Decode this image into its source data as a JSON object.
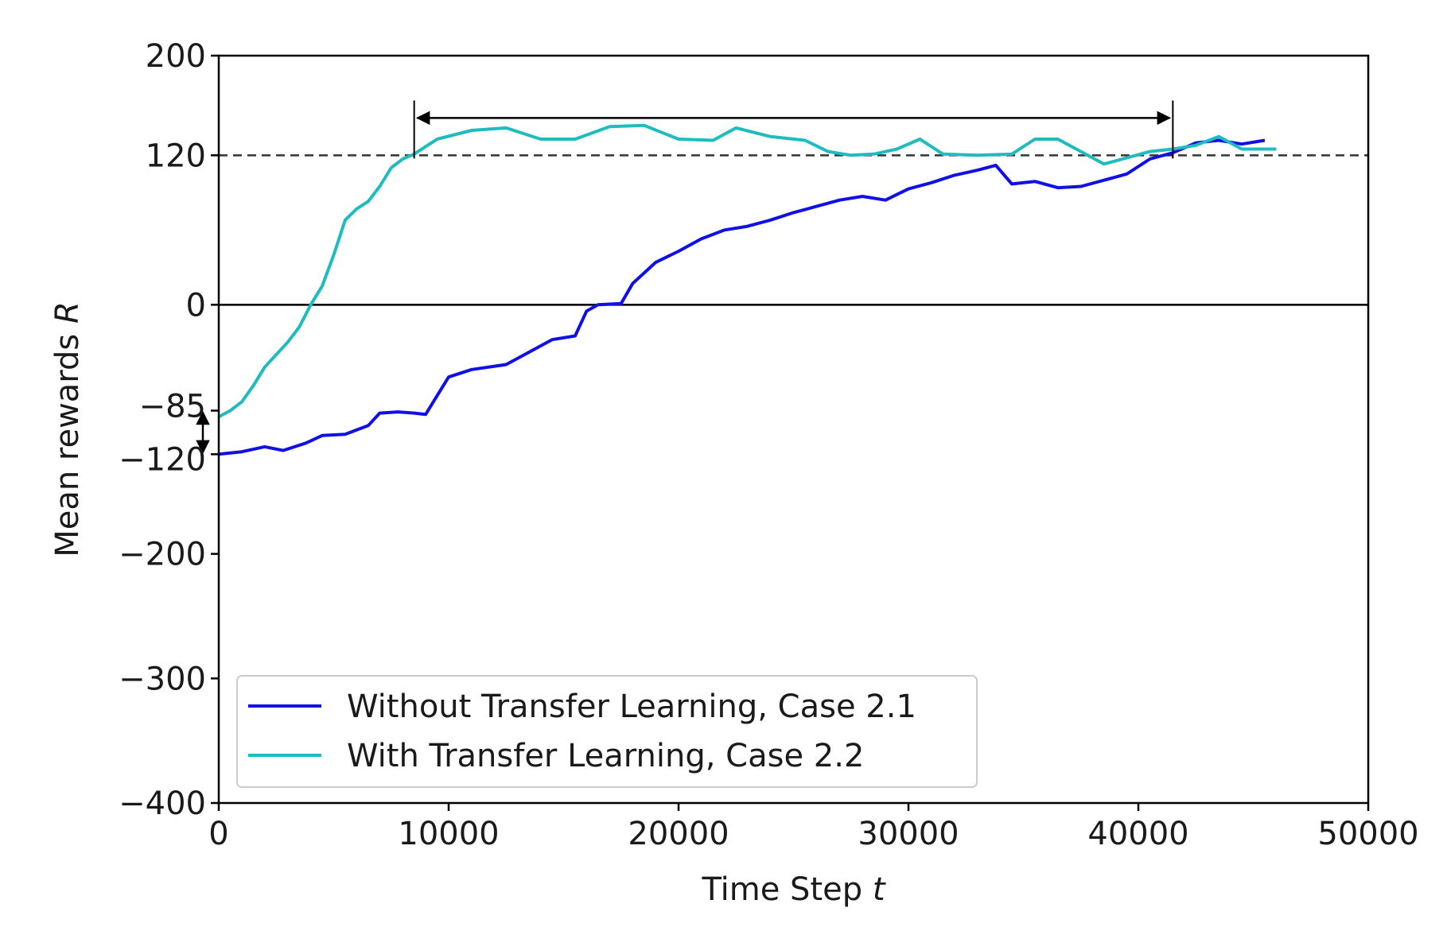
{
  "chart_data": {
    "type": "line",
    "title": "",
    "xlabel": "Time Step",
    "xlabel_var": "t",
    "ylabel": "Mean rewards",
    "ylabel_var": "R",
    "xlim": [
      0,
      50000
    ],
    "ylim": [
      -400,
      200
    ],
    "grid": false,
    "legend_position": "lower-left",
    "x_ticks": [
      {
        "value": 0,
        "label": "0"
      },
      {
        "value": 10000,
        "label": "10000"
      },
      {
        "value": 20000,
        "label": "20000"
      },
      {
        "value": 30000,
        "label": "30000"
      },
      {
        "value": 40000,
        "label": "40000"
      },
      {
        "value": 50000,
        "label": "50000"
      }
    ],
    "y_ticks": [
      {
        "value": 200,
        "label": "200"
      },
      {
        "value": 120,
        "label": "120"
      },
      {
        "value": 0,
        "label": "0"
      },
      {
        "value": -85,
        "label": "−85"
      },
      {
        "value": -120,
        "label": "−120"
      },
      {
        "value": -200,
        "label": "−200"
      },
      {
        "value": -300,
        "label": "−300"
      },
      {
        "value": -400,
        "label": "−400"
      }
    ],
    "reference_lines": [
      {
        "y": 120,
        "style": "dashed",
        "color": "#333333"
      },
      {
        "y": 0,
        "style": "solid",
        "color": "#000000"
      }
    ],
    "annotations": [
      {
        "type": "horizontal-double-arrow",
        "x_start": 8500,
        "x_end": 41500,
        "y": 150
      },
      {
        "type": "vertical-double-arrow",
        "x": -700,
        "y_start": -85,
        "y_end": -120
      }
    ],
    "series": [
      {
        "name": "Without Transfer Learning, Case 2.1",
        "color": "#1010e6",
        "x": [
          0,
          1000,
          2000,
          2800,
          3800,
          4500,
          5500,
          6500,
          7000,
          7800,
          8500,
          9000,
          9500,
          10000,
          11000,
          12500,
          13500,
          14500,
          15500,
          16000,
          16500,
          17500,
          18000,
          19000,
          20000,
          21000,
          22000,
          23000,
          24000,
          25000,
          26000,
          27000,
          28000,
          29000,
          30000,
          31000,
          32000,
          33000,
          33800,
          34500,
          35500,
          36500,
          37500,
          38500,
          39500,
          40500,
          41500,
          42500,
          43500,
          44500,
          45500
        ],
        "y": [
          -120,
          -118,
          -114,
          -117,
          -111,
          -105,
          -104,
          -97,
          -87,
          -86,
          -87,
          -88,
          -73,
          -58,
          -52,
          -48,
          -38,
          -28,
          -25,
          -5,
          0,
          1,
          17,
          34,
          43,
          53,
          60,
          63,
          68,
          74,
          79,
          84,
          87,
          84,
          93,
          98,
          104,
          108,
          112,
          97,
          99,
          94,
          95,
          100,
          105,
          117,
          122,
          130,
          132,
          129,
          132
        ]
      },
      {
        "name": "With Transfer Learning, Case 2.2",
        "color": "#1ebcbf",
        "x": [
          0,
          500,
          1000,
          1500,
          2000,
          2500,
          3000,
          3500,
          4000,
          4500,
          5000,
          5500,
          6000,
          6500,
          7000,
          7500,
          8000,
          8500,
          9500,
          11000,
          12500,
          14000,
          15500,
          17000,
          18500,
          20000,
          21500,
          22500,
          24000,
          25500,
          26500,
          27500,
          28500,
          29500,
          30500,
          31500,
          33000,
          34500,
          35500,
          36500,
          37500,
          38500,
          39500,
          40500,
          41500,
          42500,
          43500,
          44500,
          45500,
          46000
        ],
        "y": [
          -90,
          -85,
          -78,
          -65,
          -50,
          -40,
          -30,
          -18,
          0,
          15,
          40,
          68,
          77,
          83,
          95,
          110,
          117,
          121,
          133,
          140,
          142,
          133,
          133,
          143,
          144,
          133,
          132,
          142,
          135,
          132,
          123,
          120,
          121,
          125,
          133,
          121,
          120,
          121,
          133,
          133,
          123,
          113,
          118,
          123,
          125,
          128,
          135,
          125,
          125,
          125
        ]
      }
    ]
  }
}
